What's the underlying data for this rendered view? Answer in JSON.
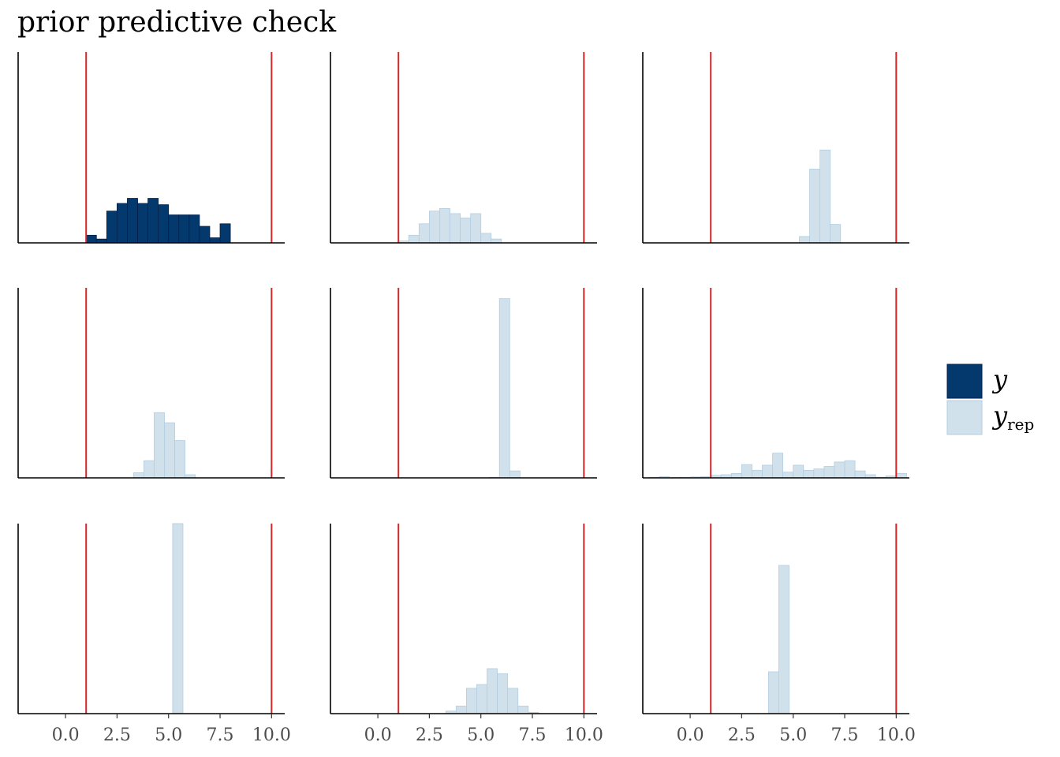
{
  "chart_data": {
    "type": "bar",
    "title": "prior predictive check",
    "layout": {
      "rows": 3,
      "cols": 3
    },
    "x_range": [
      -2.3,
      10.6
    ],
    "x_ticks": [
      0.0,
      2.5,
      5.0,
      7.5,
      10.0
    ],
    "x_tick_labels": [
      "0.0",
      "2.5",
      "5.0",
      "7.5",
      "10.0"
    ],
    "vlines": [
      1,
      10
    ],
    "vline_color": "#d62728",
    "colors": {
      "y": "#03396c",
      "y_rep": "#d1e1ec",
      "y_rep_edge": "#b3cde0"
    },
    "legend": {
      "position": "right",
      "entries": [
        {
          "key": "y",
          "main": "y",
          "sub": ""
        },
        {
          "key": "y_rep",
          "main": "y",
          "sub": "rep"
        }
      ]
    },
    "panels": [
      {
        "series": "y",
        "ymax": 30,
        "bars": [
          [
            1.0,
            1.5,
            1.2
          ],
          [
            1.5,
            2.0,
            0.6
          ],
          [
            2.0,
            2.5,
            5
          ],
          [
            2.5,
            3.0,
            6.2
          ],
          [
            3.0,
            3.5,
            7
          ],
          [
            3.5,
            4.0,
            6.2
          ],
          [
            4.0,
            4.5,
            7
          ],
          [
            4.5,
            5.0,
            6
          ],
          [
            5.0,
            5.5,
            4.4
          ],
          [
            5.5,
            6.0,
            4.4
          ],
          [
            6.0,
            6.5,
            4.4
          ],
          [
            6.5,
            7.0,
            2.6
          ],
          [
            7.0,
            7.5,
            0.8
          ],
          [
            7.5,
            8.0,
            3
          ]
        ]
      },
      {
        "series": "y_rep",
        "ymax": 30,
        "bars": [
          [
            1.0,
            1.5,
            0.3
          ],
          [
            1.5,
            2.0,
            1.2
          ],
          [
            2.0,
            2.5,
            3
          ],
          [
            2.5,
            3.0,
            5
          ],
          [
            3.0,
            3.5,
            5.4
          ],
          [
            3.5,
            4.0,
            4.6
          ],
          [
            4.0,
            4.5,
            3.9
          ],
          [
            4.5,
            5.0,
            4.6
          ],
          [
            5.0,
            5.5,
            1.5
          ],
          [
            5.5,
            6.0,
            0.6
          ]
        ]
      },
      {
        "series": "y_rep",
        "ymax": 30,
        "bars": [
          [
            5.3,
            5.8,
            1
          ],
          [
            5.8,
            6.3,
            11.6
          ],
          [
            6.3,
            6.8,
            14.6
          ],
          [
            6.8,
            7.3,
            2.9
          ]
        ]
      },
      {
        "series": "y_rep",
        "ymax": 30,
        "bars": [
          [
            3.3,
            3.8,
            0.8
          ],
          [
            3.8,
            4.3,
            2.7
          ],
          [
            4.3,
            4.8,
            10.3
          ],
          [
            4.8,
            5.3,
            8.7
          ],
          [
            5.3,
            5.8,
            5.9
          ],
          [
            5.8,
            6.3,
            0.5
          ]
        ]
      },
      {
        "series": "y_rep",
        "ymax": 30,
        "bars": [
          [
            5.4,
            5.9,
            0.1
          ],
          [
            5.9,
            6.4,
            28.3
          ],
          [
            6.4,
            6.9,
            1.1
          ]
        ]
      },
      {
        "series": "y_rep",
        "ymax": 30,
        "bars": [
          [
            -2.0,
            -1.5,
            0.1
          ],
          [
            -1.5,
            -1.0,
            0.2
          ],
          [
            -1.0,
            -0.5,
            0.05
          ],
          [
            -0.5,
            0.0,
            0.1
          ],
          [
            0.0,
            0.5,
            0.15
          ],
          [
            0.5,
            1.0,
            0.2
          ],
          [
            1.0,
            1.5,
            0.4
          ],
          [
            1.5,
            2.0,
            0.5
          ],
          [
            2.0,
            2.5,
            0.7
          ],
          [
            2.5,
            3.0,
            2.1
          ],
          [
            3.0,
            3.5,
            1.2
          ],
          [
            3.5,
            4.0,
            2
          ],
          [
            4.0,
            4.5,
            3.9
          ],
          [
            4.5,
            5.0,
            0.9
          ],
          [
            5.0,
            5.5,
            2
          ],
          [
            5.5,
            6.0,
            1.2
          ],
          [
            6.0,
            6.5,
            1.4
          ],
          [
            6.5,
            7.0,
            1.8
          ],
          [
            7.0,
            7.5,
            2.5
          ],
          [
            7.5,
            8.0,
            2.7
          ],
          [
            8.0,
            8.5,
            1.1
          ],
          [
            8.5,
            9.0,
            0.5
          ],
          [
            9.0,
            9.5,
            0.1
          ],
          [
            9.5,
            10.0,
            0.3
          ],
          [
            10.0,
            10.5,
            0.7
          ]
        ]
      },
      {
        "series": "y_rep",
        "ymax": 30,
        "bars": [
          [
            5.2,
            5.7,
            30
          ]
        ]
      },
      {
        "series": "y_rep",
        "ymax": 30,
        "bars": [
          [
            3.3,
            3.8,
            0.4
          ],
          [
            3.8,
            4.3,
            1.2
          ],
          [
            4.3,
            4.8,
            4
          ],
          [
            4.8,
            5.3,
            4.6
          ],
          [
            5.3,
            5.8,
            7.1
          ],
          [
            5.8,
            6.3,
            6.3
          ],
          [
            6.3,
            6.8,
            4
          ],
          [
            6.8,
            7.3,
            1.2
          ],
          [
            7.3,
            7.8,
            0.2
          ]
        ]
      },
      {
        "series": "y_rep",
        "ymax": 30,
        "bars": [
          [
            3.8,
            4.3,
            6.6
          ],
          [
            4.3,
            4.8,
            23.4
          ]
        ]
      }
    ]
  }
}
